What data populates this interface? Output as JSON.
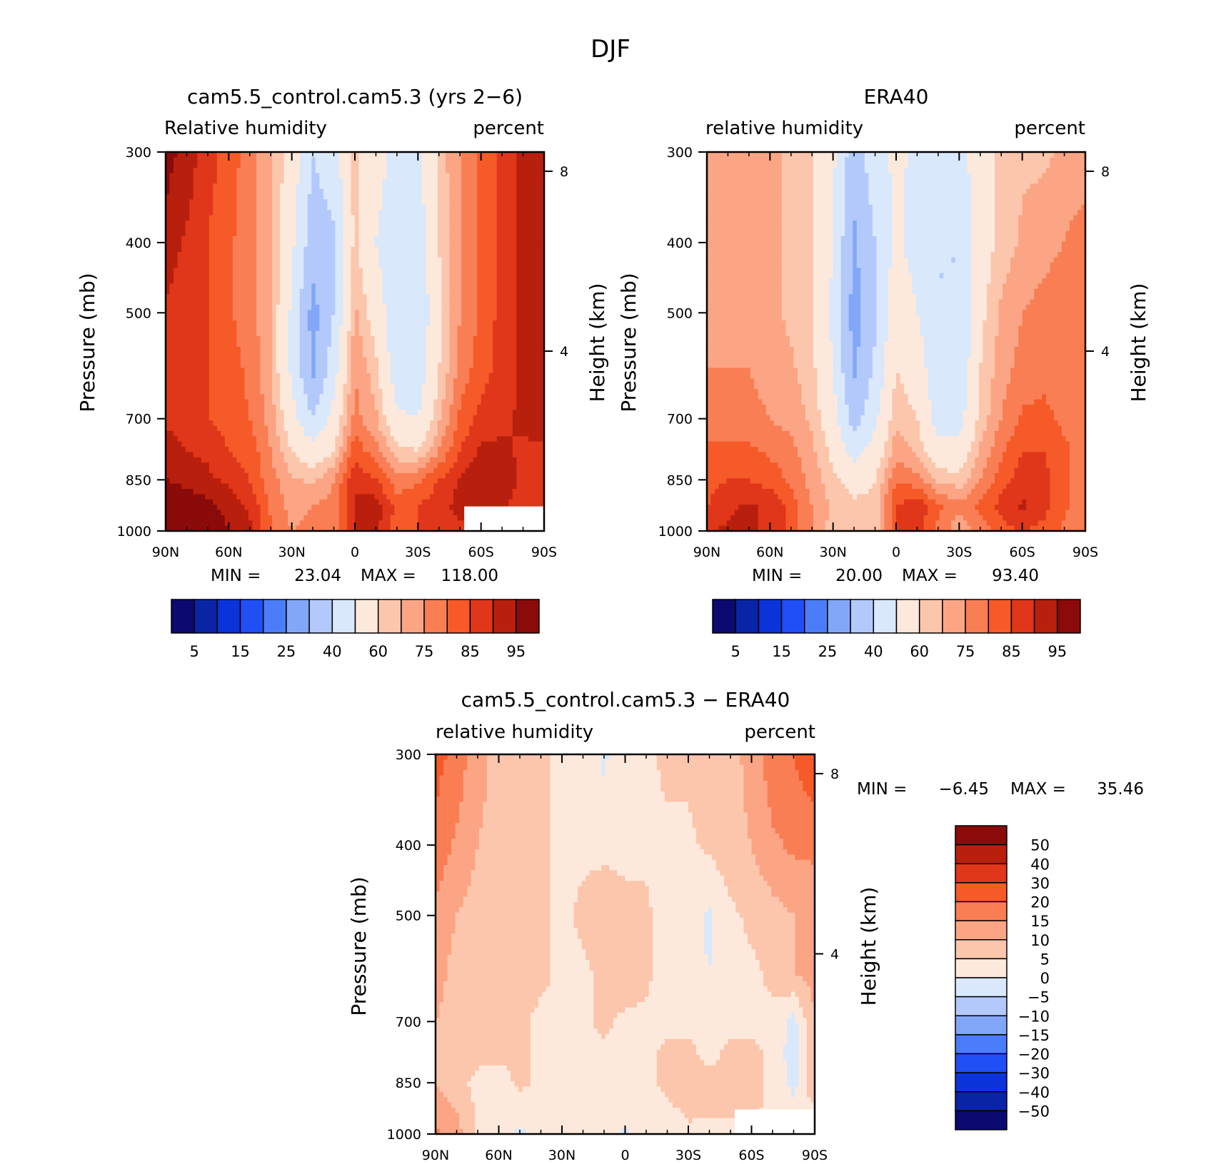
{
  "figure": {
    "title": "DJF"
  },
  "panels": [
    {
      "id": "model",
      "title": "cam5.5_control.cam5.3 (yrs 2-6)",
      "left_label": "Relative humidity",
      "right_label": "percent",
      "ylabel": "Pressure (mb)",
      "y2label": "Height (km)",
      "stats": {
        "min_label": "MIN =",
        "min": "23.04",
        "max_label": "MAX =",
        "max": "118.00"
      }
    },
    {
      "id": "obs",
      "title": "ERA40",
      "left_label": "relative humidity",
      "right_label": "percent",
      "ylabel": "Pressure (mb)",
      "y2label": "Height (km)",
      "stats": {
        "min_label": "MIN =",
        "min": "20.00",
        "max_label": "MAX =",
        "max": "93.40"
      }
    },
    {
      "id": "diff",
      "title": "cam5.5_control.cam5.3 - ERA40",
      "left_label": "relative humidity",
      "right_label": "percent",
      "ylabel": "Pressure (mb)",
      "y2label": "Height (km)",
      "stats": {
        "min_label": "MIN =",
        "min": "-6.45",
        "max_label": "MAX =",
        "max": "35.46"
      }
    }
  ],
  "chart_data": [
    {
      "type": "heatmap",
      "panel": "model",
      "title": "cam5.5_control.cam5.3 (yrs 2-6)",
      "xlabel": "",
      "ylabel": "Pressure (mb)",
      "y2label": "Height (km)",
      "xlim": [
        90,
        -90
      ],
      "ylim": [
        1000,
        300
      ],
      "x_ticks": [
        "90N",
        "60N",
        "30N",
        "0",
        "30S",
        "60S",
        "90S"
      ],
      "y_ticks": [
        "300",
        "400",
        "500",
        "700",
        "850",
        "1000"
      ],
      "y2_ticks": [
        "8",
        "4"
      ],
      "x": [
        90,
        80,
        70,
        60,
        50,
        40,
        30,
        20,
        10,
        0,
        -10,
        -20,
        -30,
        -40,
        -50,
        -60,
        -70,
        -80,
        -90
      ],
      "y": [
        300,
        400,
        500,
        600,
        700,
        775,
        850,
        925,
        1000
      ],
      "z": [
        [
          92,
          88,
          82,
          78,
          72,
          66,
          56,
          40,
          46,
          62,
          54,
          46,
          48,
          62,
          70,
          76,
          82,
          86,
          90
        ],
        [
          88,
          84,
          80,
          76,
          72,
          66,
          52,
          34,
          38,
          62,
          50,
          44,
          44,
          60,
          70,
          76,
          82,
          86,
          90
        ],
        [
          84,
          82,
          80,
          76,
          72,
          66,
          48,
          26,
          40,
          66,
          56,
          42,
          42,
          58,
          70,
          76,
          82,
          86,
          88
        ],
        [
          84,
          82,
          80,
          77,
          74,
          66,
          48,
          28,
          46,
          70,
          62,
          44,
          44,
          60,
          72,
          78,
          82,
          86,
          88
        ],
        [
          84,
          82,
          80,
          78,
          75,
          68,
          54,
          40,
          54,
          72,
          66,
          52,
          50,
          64,
          76,
          82,
          84,
          86,
          88
        ],
        [
          88,
          85,
          84,
          80,
          78,
          70,
          60,
          54,
          60,
          78,
          72,
          62,
          60,
          70,
          80,
          86,
          86,
          84,
          84
        ],
        [
          90,
          88,
          86,
          84,
          80,
          72,
          66,
          64,
          70,
          84,
          80,
          72,
          74,
          80,
          86,
          90,
          88,
          84,
          82
        ],
        [
          96,
          94,
          92,
          88,
          84,
          74,
          68,
          70,
          72,
          86,
          88,
          78,
          80,
          84,
          86,
          88,
          86,
          82,
          80
        ],
        [
          98,
          96,
          96,
          90,
          86,
          76,
          70,
          72,
          70,
          86,
          86,
          78,
          80,
          84,
          84,
          84,
          82,
          80,
          78
        ]
      ],
      "missing": [
        {
          "x": [
            -52,
            -90
          ],
          "y": [
            925,
            1000
          ]
        }
      ],
      "min": 23.04,
      "max": 118.0,
      "units": "percent",
      "contour_levels": [
        5,
        10,
        15,
        20,
        25,
        30,
        40,
        50,
        60,
        65,
        70,
        75,
        80,
        85,
        90,
        95
      ],
      "colorbar_labels": [
        "5",
        "15",
        "25",
        "40",
        "60",
        "75",
        "85",
        "95"
      ]
    },
    {
      "type": "heatmap",
      "panel": "obs",
      "title": "ERA40",
      "xlabel": "",
      "ylabel": "Pressure (mb)",
      "y2label": "Height (km)",
      "xlim": [
        90,
        -90
      ],
      "ylim": [
        1000,
        300
      ],
      "x_ticks": [
        "90N",
        "60N",
        "30N",
        "0",
        "30S",
        "60S",
        "90S"
      ],
      "y_ticks": [
        "300",
        "400",
        "500",
        "700",
        "850",
        "1000"
      ],
      "y2_ticks": [
        "8",
        "4"
      ],
      "x": [
        90,
        80,
        70,
        60,
        50,
        40,
        30,
        20,
        10,
        0,
        -10,
        -20,
        -30,
        -40,
        -50,
        -60,
        -70,
        -80,
        -90
      ],
      "y": [
        300,
        400,
        500,
        600,
        700,
        775,
        850,
        925,
        1000
      ],
      "z": [
        [
          68,
          68,
          68,
          66,
          64,
          60,
          52,
          34,
          46,
          52,
          48,
          44,
          46,
          56,
          62,
          64,
          64,
          66,
          66
        ],
        [
          68,
          68,
          68,
          66,
          64,
          60,
          50,
          28,
          40,
          52,
          46,
          40,
          40,
          56,
          62,
          66,
          68,
          70,
          74
        ],
        [
          68,
          68,
          68,
          66,
          64,
          60,
          48,
          26,
          38,
          58,
          50,
          40,
          40,
          58,
          66,
          70,
          72,
          74,
          74
        ],
        [
          70,
          70,
          70,
          68,
          66,
          62,
          50,
          28,
          42,
          60,
          56,
          42,
          42,
          60,
          68,
          72,
          74,
          74,
          74
        ],
        [
          72,
          72,
          72,
          70,
          68,
          64,
          54,
          36,
          48,
          64,
          60,
          46,
          46,
          62,
          70,
          76,
          76,
          74,
          72
        ],
        [
          76,
          76,
          76,
          74,
          72,
          66,
          58,
          46,
          54,
          68,
          64,
          54,
          54,
          66,
          74,
          80,
          80,
          76,
          72
        ],
        [
          78,
          80,
          80,
          78,
          74,
          68,
          62,
          56,
          60,
          74,
          72,
          64,
          62,
          70,
          78,
          82,
          82,
          76,
          72
        ],
        [
          80,
          84,
          86,
          84,
          78,
          70,
          64,
          62,
          62,
          80,
          84,
          76,
          72,
          76,
          82,
          86,
          82,
          76,
          70
        ],
        [
          84,
          86,
          86,
          84,
          78,
          70,
          62,
          60,
          62,
          80,
          82,
          74,
          66,
          72,
          78,
          80,
          78,
          74,
          70
        ]
      ],
      "min": 20.0,
      "max": 93.4,
      "units": "percent",
      "contour_levels": [
        5,
        10,
        15,
        20,
        25,
        30,
        40,
        50,
        60,
        65,
        70,
        75,
        80,
        85,
        90,
        95
      ],
      "colorbar_labels": [
        "5",
        "15",
        "25",
        "40",
        "60",
        "75",
        "85",
        "95"
      ]
    },
    {
      "type": "heatmap",
      "panel": "diff",
      "title": "cam5.5_control.cam5.3 - ERA40",
      "xlabel": "",
      "ylabel": "Pressure (mb)",
      "y2label": "Height (km)",
      "xlim": [
        90,
        -90
      ],
      "ylim": [
        1000,
        300
      ],
      "x_ticks": [
        "90N",
        "60N",
        "30N",
        "0",
        "30S",
        "60S",
        "90S"
      ],
      "y_ticks": [
        "300",
        "400",
        "500",
        "700",
        "850",
        "1000"
      ],
      "y2_ticks": [
        "8",
        "4"
      ],
      "x": [
        90,
        80,
        70,
        60,
        50,
        40,
        30,
        20,
        10,
        0,
        -10,
        -20,
        -30,
        -40,
        -50,
        -60,
        -70,
        -80,
        -90
      ],
      "y": [
        300,
        400,
        500,
        600,
        700,
        775,
        850,
        925,
        1000
      ],
      "z": [
        [
          22,
          18,
          12,
          8,
          6,
          6,
          4,
          4,
          -1,
          4,
          4,
          6,
          6,
          8,
          8,
          12,
          18,
          20,
          24
        ],
        [
          18,
          14,
          10,
          8,
          6,
          6,
          4,
          4,
          3,
          4,
          4,
          4,
          4,
          6,
          8,
          10,
          14,
          16,
          16
        ],
        [
          14,
          10,
          8,
          8,
          6,
          6,
          4,
          6,
          10,
          6,
          6,
          2,
          2,
          -1,
          4,
          6,
          8,
          10,
          12
        ],
        [
          12,
          8,
          6,
          6,
          6,
          6,
          4,
          4,
          6,
          8,
          6,
          2,
          2,
          0,
          4,
          4,
          6,
          10,
          12
        ],
        [
          10,
          8,
          6,
          6,
          6,
          4,
          4,
          4,
          6,
          4,
          4,
          4,
          4,
          2,
          4,
          4,
          4,
          -2,
          10
        ],
        [
          10,
          8,
          6,
          6,
          6,
          4,
          4,
          4,
          4,
          4,
          4,
          6,
          6,
          4,
          6,
          6,
          4,
          -3,
          10
        ],
        [
          10,
          6,
          4,
          3,
          6,
          4,
          4,
          4,
          4,
          4,
          4,
          6,
          8,
          6,
          6,
          6,
          4,
          -2,
          10
        ],
        [
          14,
          10,
          4,
          2,
          2,
          4,
          4,
          4,
          4,
          4,
          4,
          4,
          6,
          6,
          6,
          6,
          4,
          2,
          4
        ],
        [
          16,
          12,
          4,
          2,
          -1,
          2,
          2,
          2,
          2,
          -1,
          2,
          2,
          4,
          2,
          2,
          2,
          2,
          2,
          2
        ]
      ],
      "missing": [
        {
          "x": [
            -52,
            -90
          ],
          "y": [
            925,
            1000
          ]
        }
      ],
      "min": -6.45,
      "max": 35.46,
      "units": "percent",
      "contour_levels": [
        -50,
        -40,
        -30,
        -20,
        -15,
        -10,
        -5,
        0,
        5,
        10,
        15,
        20,
        30,
        40,
        50
      ],
      "colorbar_labels": [
        "50",
        "40",
        "30",
        "20",
        "15",
        "10",
        "5",
        "0",
        "-5",
        "-10",
        "-15",
        "-20",
        "-30",
        "-40",
        "-50"
      ]
    }
  ],
  "colors": {
    "abs_palette": [
      "#0a0a70",
      "#0a24a6",
      "#0a34da",
      "#1f4ff5",
      "#4b7df8",
      "#82a7f8",
      "#b3c9fb",
      "#d9e8fb",
      "#fde9dc",
      "#fcc6ac",
      "#fba585",
      "#f97e54",
      "#f55a28",
      "#e0361a",
      "#b81f0c",
      "#8b0a0a"
    ],
    "diff_palette": [
      "#0a0a70",
      "#0a24a6",
      "#0a34da",
      "#1f4ff5",
      "#4b7df8",
      "#82a7f8",
      "#b3c9fb",
      "#d9e8fb",
      "#fde9dc",
      "#fcc6ac",
      "#fba585",
      "#f97e54",
      "#f55a28",
      "#e0361a",
      "#b81f0c",
      "#8b0a0a"
    ]
  }
}
